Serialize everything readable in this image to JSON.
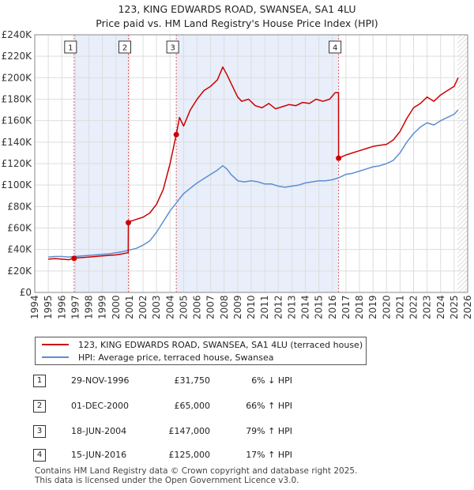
{
  "chart_title_line1": "123, KING EDWARDS ROAD, SWANSEA, SA1 4LU",
  "chart_title_line2": "Price paid vs. HM Land Registry's House Price Index (HPI)",
  "colors": {
    "price": "#cc0000",
    "hpi": "#5b8fd0",
    "shade": "#e8eefa",
    "marker_line": "#e06060",
    "grid": "#dddddd"
  },
  "chart_data": {
    "type": "line",
    "title": "Price paid vs. HM Land Registry's House Price Index (HPI)",
    "xlim": [
      1994,
      2026
    ],
    "ylim": [
      0,
      240000
    ],
    "x_ticks": [
      "1994",
      "1995",
      "1996",
      "1997",
      "1998",
      "1999",
      "2000",
      "2001",
      "2002",
      "2003",
      "2004",
      "2005",
      "2006",
      "2007",
      "2008",
      "2009",
      "2010",
      "2011",
      "2012",
      "2013",
      "2014",
      "2015",
      "2016",
      "2017",
      "2018",
      "2019",
      "2020",
      "2021",
      "2022",
      "2023",
      "2024",
      "2025",
      "2026"
    ],
    "y_ticks": [
      {
        "value": 0,
        "label": "£0"
      },
      {
        "value": 20000,
        "label": "£20K"
      },
      {
        "value": 40000,
        "label": "£40K"
      },
      {
        "value": 60000,
        "label": "£60K"
      },
      {
        "value": 80000,
        "label": "£80K"
      },
      {
        "value": 100000,
        "label": "£100K"
      },
      {
        "value": 120000,
        "label": "£120K"
      },
      {
        "value": 140000,
        "label": "£140K"
      },
      {
        "value": 160000,
        "label": "£160K"
      },
      {
        "value": 180000,
        "label": "£180K"
      },
      {
        "value": 200000,
        "label": "£200K"
      },
      {
        "value": 220000,
        "label": "£220K"
      },
      {
        "value": 240000,
        "label": "£240K"
      }
    ],
    "shaded_ranges": [
      [
        1996.91,
        2000.92
      ],
      [
        2004.46,
        2016.46
      ]
    ],
    "hatched_from": 2025.25,
    "series": [
      {
        "name": "123, KING EDWARDS ROAD, SWANSEA, SA1 4LU (terraced house)",
        "x": [
          1995.0,
          1995.5,
          1996.0,
          1996.5,
          1996.9,
          1997.0,
          1997.5,
          1998.0,
          1998.5,
          1999.0,
          1999.5,
          2000.0,
          2000.5,
          2000.91,
          2000.92,
          2001.0,
          2001.5,
          2002.0,
          2002.5,
          2003.0,
          2003.5,
          2004.0,
          2004.46,
          2004.7,
          2005.0,
          2005.5,
          2006.0,
          2006.5,
          2007.0,
          2007.5,
          2007.9,
          2008.2,
          2008.5,
          2009.0,
          2009.3,
          2009.8,
          2010.3,
          2010.8,
          2011.3,
          2011.8,
          2012.3,
          2012.8,
          2013.3,
          2013.8,
          2014.3,
          2014.8,
          2015.3,
          2015.8,
          2016.2,
          2016.45,
          2016.46,
          2017.0,
          2017.5,
          2018.0,
          2018.5,
          2019.0,
          2019.5,
          2020.0,
          2020.5,
          2021.0,
          2021.5,
          2022.0,
          2022.5,
          2023.0,
          2023.5,
          2024.0,
          2024.5,
          2025.0,
          2025.3
        ],
        "y": [
          31000,
          31500,
          31000,
          30500,
          31750,
          32000,
          32500,
          33000,
          33500,
          34000,
          34500,
          35000,
          36000,
          37000,
          65000,
          66000,
          68000,
          70000,
          74000,
          82000,
          96000,
          120000,
          147000,
          163000,
          155000,
          170000,
          180000,
          188000,
          192000,
          198000,
          210000,
          203000,
          195000,
          182000,
          178000,
          180000,
          174000,
          172000,
          176000,
          171000,
          173000,
          175000,
          174000,
          177000,
          176000,
          180000,
          178000,
          180000,
          186000,
          186000,
          125000,
          128000,
          130000,
          132000,
          134000,
          136000,
          137000,
          138000,
          142000,
          150000,
          162000,
          172000,
          176000,
          182000,
          178000,
          184000,
          188000,
          192000,
          200000
        ]
      },
      {
        "name": "HPI: Average price, terraced house, Swansea",
        "x": [
          1995.0,
          1995.5,
          1996.0,
          1996.5,
          1997.0,
          1997.5,
          1998.0,
          1998.5,
          1999.0,
          1999.5,
          2000.0,
          2000.5,
          2001.0,
          2001.5,
          2002.0,
          2002.5,
          2003.0,
          2003.5,
          2004.0,
          2004.5,
          2005.0,
          2005.5,
          2006.0,
          2006.5,
          2007.0,
          2007.5,
          2007.9,
          2008.2,
          2008.5,
          2009.0,
          2009.5,
          2010.0,
          2010.5,
          2011.0,
          2011.5,
          2012.0,
          2012.5,
          2013.0,
          2013.5,
          2014.0,
          2014.5,
          2015.0,
          2015.5,
          2016.0,
          2016.5,
          2017.0,
          2017.5,
          2018.0,
          2018.5,
          2019.0,
          2019.5,
          2020.0,
          2020.5,
          2021.0,
          2021.5,
          2022.0,
          2022.5,
          2023.0,
          2023.5,
          2024.0,
          2024.5,
          2025.0,
          2025.3
        ],
        "y": [
          33000,
          33500,
          33500,
          33000,
          33500,
          34000,
          34500,
          35000,
          35500,
          36000,
          37000,
          38000,
          39500,
          41000,
          44000,
          48000,
          56000,
          66000,
          76000,
          84000,
          92000,
          97000,
          102000,
          106000,
          110000,
          114000,
          118000,
          115000,
          110000,
          104000,
          103000,
          104000,
          103000,
          101000,
          101000,
          99000,
          98000,
          99000,
          100000,
          102000,
          103000,
          104000,
          104000,
          105000,
          107000,
          110000,
          111000,
          113000,
          115000,
          117000,
          118000,
          120000,
          123000,
          130000,
          140000,
          148000,
          154000,
          158000,
          156000,
          160000,
          163000,
          166000,
          170000
        ]
      }
    ],
    "sale_markers": [
      {
        "label": "1",
        "x": 1996.91,
        "y": 31750
      },
      {
        "label": "2",
        "x": 2000.92,
        "y": 65000
      },
      {
        "label": "3",
        "x": 2004.46,
        "y": 147000
      },
      {
        "label": "4",
        "x": 2016.46,
        "y": 125000
      }
    ]
  },
  "legend": {
    "property": "123, KING EDWARDS ROAD, SWANSEA, SA1 4LU (terraced house)",
    "hpi": "HPI: Average price, terraced house, Swansea"
  },
  "transactions": [
    {
      "num": "1",
      "date": "29-NOV-1996",
      "price": "£31,750",
      "hpi": "6% ↓ HPI"
    },
    {
      "num": "2",
      "date": "01-DEC-2000",
      "price": "£65,000",
      "hpi": "66% ↑ HPI"
    },
    {
      "num": "3",
      "date": "18-JUN-2004",
      "price": "£147,000",
      "hpi": "79% ↑ HPI"
    },
    {
      "num": "4",
      "date": "15-JUN-2016",
      "price": "£125,000",
      "hpi": "17% ↑ HPI"
    }
  ],
  "footer": {
    "line1": "Contains HM Land Registry data © Crown copyright and database right 2025.",
    "line2": "This data is licensed under the Open Government Licence v3.0."
  }
}
